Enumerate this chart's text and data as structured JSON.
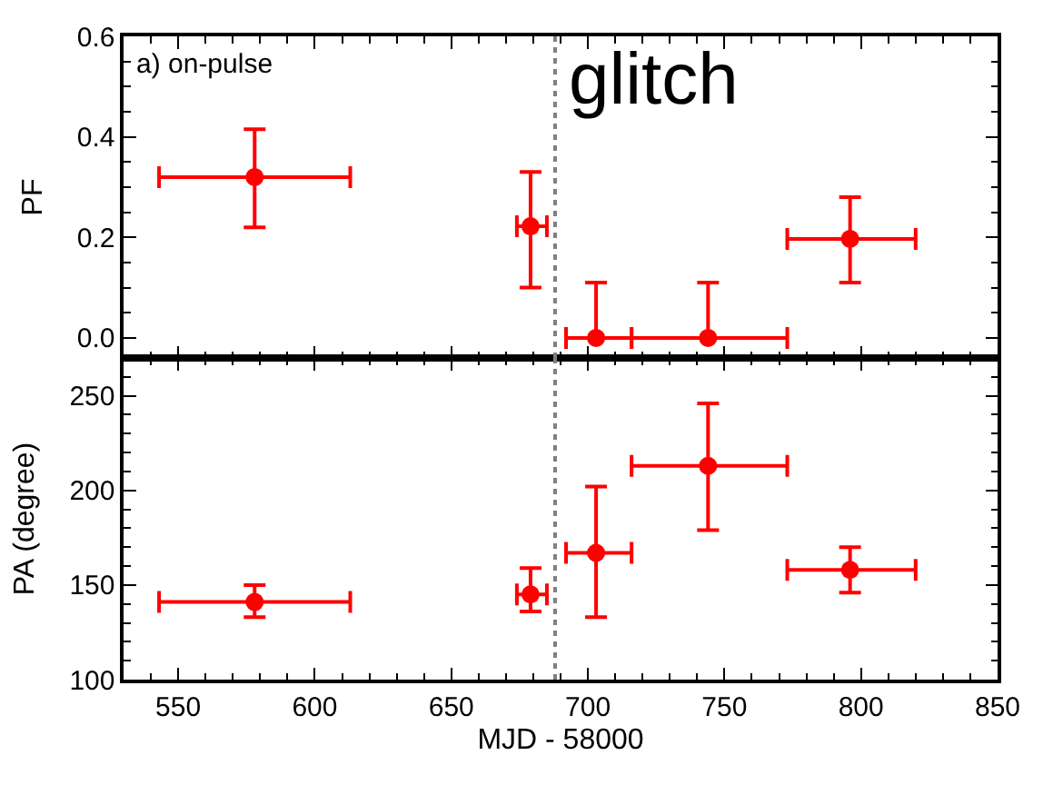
{
  "chart_data": [
    {
      "type": "scatter",
      "ylabel": "PF",
      "annotations": [
        "a) on-pulse",
        "glitch"
      ],
      "x": [
        578,
        679,
        703,
        744,
        796
      ],
      "xlim": [
        530,
        850
      ],
      "xticks": [
        550,
        600,
        650,
        700,
        750,
        800,
        850
      ],
      "ylim": [
        -0.04,
        0.6
      ],
      "yticks": [
        {
          "value": 0,
          "label": "0.0"
        },
        0.2,
        0.4,
        0.6
      ],
      "tick_labels": "y",
      "marker": "circle",
      "series": [
        {
          "color": "#ff0000",
          "values": [
            0.32,
            0.222,
            0,
            0,
            0.197
          ],
          "errors": [
            [
              0.22,
              0.415
            ],
            [
              0.1,
              0.33
            ],
            [
              0,
              0.11
            ],
            [
              0,
              0.11
            ],
            [
              0.11,
              0.28
            ]
          ],
          "xerrors": [
            [
              543,
              613
            ],
            [
              674,
              685
            ],
            [
              692,
              716
            ],
            [
              716,
              773
            ],
            [
              773,
              820
            ]
          ]
        }
      ],
      "ref_lines": [
        {
          "axis": "x",
          "value": 688,
          "color": "#808080",
          "line_style": "dotted"
        }
      ]
    },
    {
      "type": "scatter",
      "xlabel": "MJD - 58000",
      "ylabel": "PA (degree)",
      "x": [
        578,
        679,
        703,
        744,
        796
      ],
      "xlim": [
        530,
        850
      ],
      "xticks": [
        550,
        600,
        650,
        700,
        750,
        800,
        850
      ],
      "ylim": [
        100,
        270
      ],
      "yticks": [
        100,
        150,
        200,
        250
      ],
      "marker": "circle",
      "series": [
        {
          "color": "#ff0000",
          "values": [
            141,
            145,
            167,
            213,
            158
          ],
          "errors": [
            [
              133,
              150
            ],
            [
              136,
              159
            ],
            [
              133,
              202
            ],
            [
              179,
              246
            ],
            [
              146,
              170
            ]
          ],
          "xerrors": [
            [
              543,
              613
            ],
            [
              674,
              685
            ],
            [
              692,
              716
            ],
            [
              716,
              773
            ],
            [
              773,
              820
            ]
          ]
        }
      ],
      "ref_lines": [
        {
          "axis": "x",
          "value": 688,
          "color": "#808080",
          "line_style": "dotted"
        }
      ]
    }
  ]
}
